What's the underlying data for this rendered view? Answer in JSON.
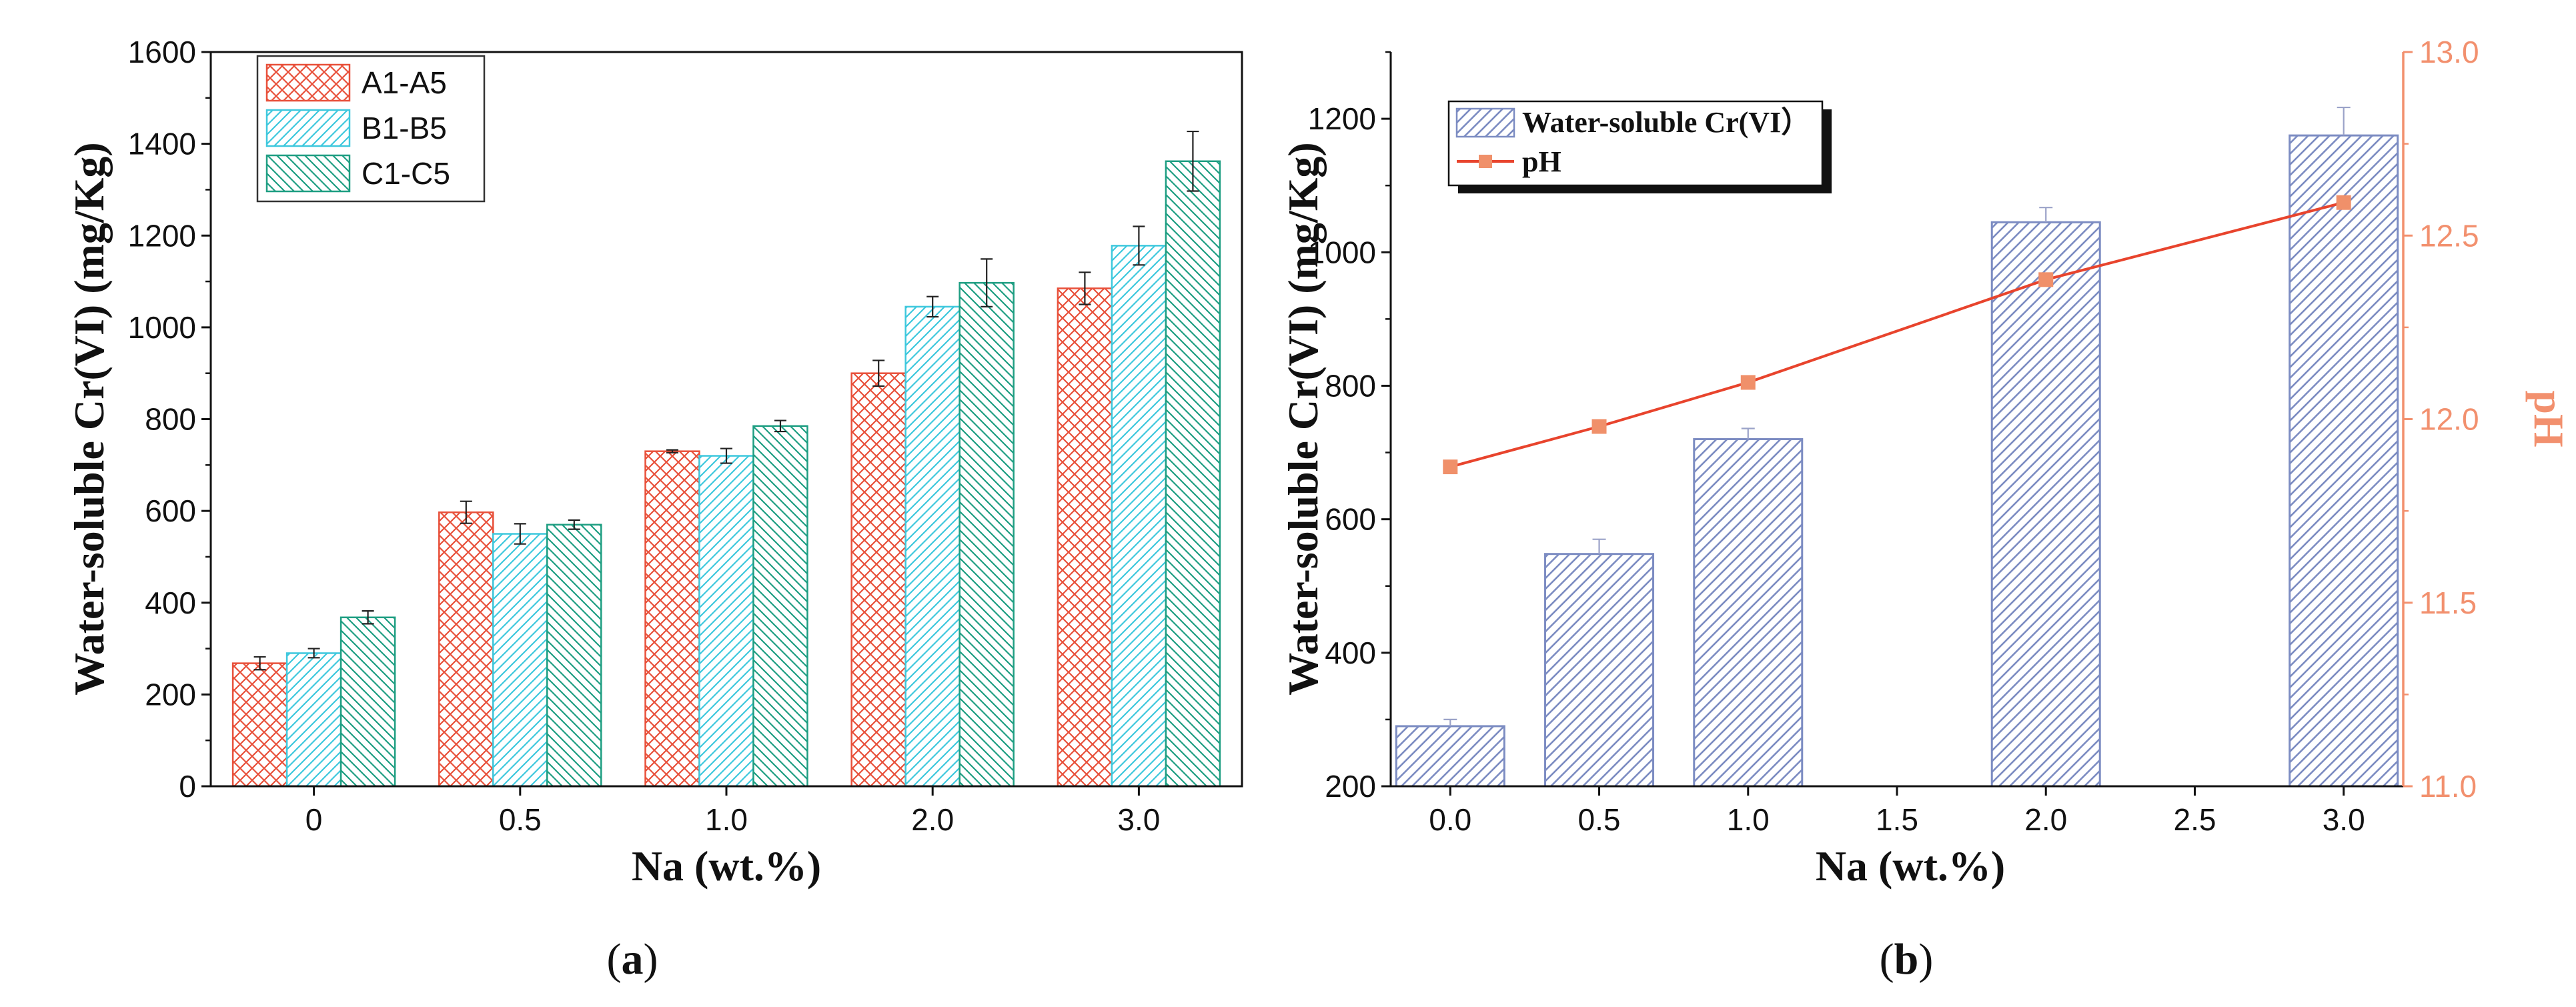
{
  "colors": {
    "A": "#e8503a",
    "B": "#3ec8dd",
    "C": "#1e9e82",
    "bar_b": "#7c8cc2",
    "ph_line": "#e8442d",
    "ph_marker": "#f0906a",
    "ph_axis": "#f2906e"
  },
  "chart_data": [
    {
      "panel": "a",
      "type": "bar",
      "panel_label_open": "(",
      "panel_label_letter": "a",
      "panel_label_close": ")",
      "categories": [
        "0",
        "0.5",
        "1.0",
        "2.0",
        "3.0"
      ],
      "series": [
        {
          "name": "A1-A5",
          "values": [
            268,
            597,
            730,
            900,
            1085
          ],
          "errors": [
            14,
            24,
            3,
            28,
            35
          ],
          "color": "#e8503a",
          "pattern": "crosshatch"
        },
        {
          "name": "B1-B5",
          "values": [
            290,
            550,
            720,
            1045,
            1178
          ],
          "errors": [
            10,
            22,
            16,
            22,
            42
          ],
          "color": "#3ec8dd",
          "pattern": "hatch-up"
        },
        {
          "name": "C1-C5",
          "values": [
            368,
            570,
            785,
            1097,
            1362
          ],
          "errors": [
            14,
            10,
            12,
            52,
            65
          ],
          "color": "#1e9e82",
          "pattern": "hatch-down"
        }
      ],
      "xlabel": "Na (wt.%)",
      "ylabel": "Water-soluble Cr(VI) (mg/Kg)",
      "ylim": [
        0,
        1600
      ],
      "yticks": [
        "0",
        "200",
        "400",
        "600",
        "800",
        "1000",
        "1200",
        "1400",
        "1600"
      ],
      "legend": "top-left",
      "grid": false
    },
    {
      "panel": "b",
      "type": "bar+line",
      "panel_label_open": "(",
      "panel_label_letter": "b",
      "panel_label_close": ")",
      "x_ticks": [
        "0.0",
        "0.5",
        "1.0",
        "1.5",
        "2.0",
        "2.5",
        "3.0"
      ],
      "xlim": [
        -0.2,
        3.2
      ],
      "bars": {
        "name": "Water-soluble Cr(VI）",
        "x": [
          0,
          0.5,
          1.0,
          2.0,
          3.0
        ],
        "values": [
          290,
          548,
          720,
          1045,
          1175
        ],
        "errors": [
          10,
          22,
          16,
          22,
          42
        ],
        "color": "#7c8cc2"
      },
      "line": {
        "name": "pH",
        "x": [
          0,
          0.5,
          1.0,
          2.0,
          3.0
        ],
        "values": [
          11.87,
          11.98,
          12.1,
          12.38,
          12.59
        ],
        "color": "#e8442d"
      },
      "xlabel": "Na (wt.%)",
      "ylabel": "Water-soluble Cr(VI) (mg/Kg)",
      "ylabel_right": "pH",
      "ylim": [
        200,
        1300
      ],
      "yticks": [
        "200",
        "400",
        "600",
        "800",
        "1000",
        "1200"
      ],
      "ylim_right": [
        11.0,
        13.0
      ],
      "yticks_right": [
        "11.0",
        "11.5",
        "12.0",
        "12.5",
        "13.0"
      ],
      "legend": "top-left",
      "grid": false
    }
  ]
}
